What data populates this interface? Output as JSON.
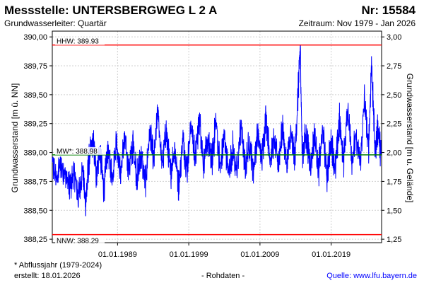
{
  "header": {
    "title": "Messstelle: UNTERSBERGWEG L 2 A",
    "number": "Nr: 15584",
    "aquifer": "Grundwasserleiter: Quartär",
    "period": "Zeitraum: Nov 1979 - Jan 2026"
  },
  "footer": {
    "note": "* Abflussjahr (1979-2024)",
    "created": "erstellt:  18.01.2026",
    "raw": "- Rohdaten -",
    "source": "Quelle: www.lfu.bayern.de"
  },
  "colors": {
    "series": "#0000ff",
    "hhw_line": "#ff0000",
    "nnw_line": "#ff0000",
    "mw_line": "#008000",
    "grid": "#d0d0d0"
  },
  "chart_data": {
    "type": "line",
    "ylabel": "Grundwasserstand [m ü. NN]",
    "y2label": "Grundwasserstand [m u. Gelände]",
    "ylim": [
      388.22,
      390.05
    ],
    "y_ticks": [
      "388,25",
      "388,50",
      "388,75",
      "389,00",
      "389,25",
      "389,50",
      "389,75",
      "390,00"
    ],
    "y2_ticks": [
      "1,25",
      "1,50",
      "1,75",
      "2,00",
      "2,25",
      "2,50",
      "2,75",
      "3,00"
    ],
    "x_range": [
      "1979-11-01",
      "2026-01-31"
    ],
    "x_ticks": [
      "01.01.1989",
      "01.01.1999",
      "01.01.2009",
      "01.01.2019"
    ],
    "grid": true,
    "reference_lines": [
      {
        "label": "HHW: 389.93",
        "value": 389.93
      },
      {
        "label": "MW*: 388.98",
        "value": 388.98
      },
      {
        "label": "NNW: 388.29",
        "value": 388.29
      }
    ],
    "series": [
      {
        "points": [
          [
            "1979-11",
            388.92
          ],
          [
            "1980-06",
            388.75
          ],
          [
            "1981-01",
            388.9
          ],
          [
            "1981-09",
            388.8
          ],
          [
            "1982-04",
            388.7
          ],
          [
            "1982-12",
            388.82
          ],
          [
            "1983-07",
            388.62
          ],
          [
            "1984-02",
            388.86
          ],
          [
            "1984-07",
            388.55
          ],
          [
            "1985-01",
            388.95
          ],
          [
            "1985-08",
            389.1
          ],
          [
            "1986-01",
            388.82
          ],
          [
            "1986-07",
            389.02
          ],
          [
            "1987-02",
            388.68
          ],
          [
            "1987-09",
            389.03
          ],
          [
            "1988-04",
            388.78
          ],
          [
            "1988-11",
            389.1
          ],
          [
            "1989-06",
            388.82
          ],
          [
            "1990-01",
            389.12
          ],
          [
            "1990-08",
            388.85
          ],
          [
            "1991-03",
            389.08
          ],
          [
            "1991-10",
            388.78
          ],
          [
            "1992-05",
            388.98
          ],
          [
            "1992-12",
            388.72
          ],
          [
            "1993-07",
            389.18
          ],
          [
            "1994-02",
            388.92
          ],
          [
            "1994-09",
            389.35
          ],
          [
            "1995-04",
            388.88
          ],
          [
            "1995-11",
            389.2
          ],
          [
            "1996-06",
            388.8
          ],
          [
            "1997-01",
            389.05
          ],
          [
            "1997-08",
            388.7
          ],
          [
            "1998-03",
            389.12
          ],
          [
            "1998-10",
            388.85
          ],
          [
            "1999-05",
            389.25
          ],
          [
            "1999-12",
            388.95
          ],
          [
            "2000-07",
            389.3
          ],
          [
            "2001-02",
            388.9
          ],
          [
            "2001-09",
            389.1
          ],
          [
            "2002-04",
            388.92
          ],
          [
            "2002-11",
            389.28
          ],
          [
            "2003-06",
            388.85
          ],
          [
            "2004-01",
            389.15
          ],
          [
            "2004-08",
            388.82
          ],
          [
            "2005-03",
            389.05
          ],
          [
            "2005-10",
            388.8
          ],
          [
            "2006-05",
            389.25
          ],
          [
            "2006-12",
            388.85
          ],
          [
            "2007-07",
            389.1
          ],
          [
            "2008-02",
            388.85
          ],
          [
            "2008-09",
            389.18
          ],
          [
            "2009-04",
            388.92
          ],
          [
            "2009-11",
            389.32
          ],
          [
            "2010-06",
            388.95
          ],
          [
            "2011-01",
            389.1
          ],
          [
            "2011-08",
            388.9
          ],
          [
            "2012-03",
            389.22
          ],
          [
            "2012-10",
            388.88
          ],
          [
            "2013-05",
            389.15
          ],
          [
            "2013-12",
            388.95
          ],
          [
            "2014-06",
            389.6
          ],
          [
            "2014-09",
            389.92
          ],
          [
            "2014-12",
            389.0
          ],
          [
            "2015-07",
            389.15
          ],
          [
            "2016-02",
            388.88
          ],
          [
            "2016-09",
            389.15
          ],
          [
            "2017-04",
            388.85
          ],
          [
            "2017-11",
            389.2
          ],
          [
            "2018-06",
            388.8
          ],
          [
            "2019-01",
            389.1
          ],
          [
            "2019-08",
            388.85
          ],
          [
            "2020-03",
            389.28
          ],
          [
            "2020-10",
            388.92
          ],
          [
            "2021-05",
            389.4
          ],
          [
            "2021-12",
            388.95
          ],
          [
            "2022-07",
            389.12
          ],
          [
            "2023-02",
            388.9
          ],
          [
            "2023-09",
            389.45
          ],
          [
            "2024-04",
            389.02
          ],
          [
            "2024-09",
            389.78
          ],
          [
            "2025-03",
            389.0
          ],
          [
            "2025-08",
            389.22
          ],
          [
            "2026-01",
            388.98
          ]
        ]
      }
    ]
  }
}
